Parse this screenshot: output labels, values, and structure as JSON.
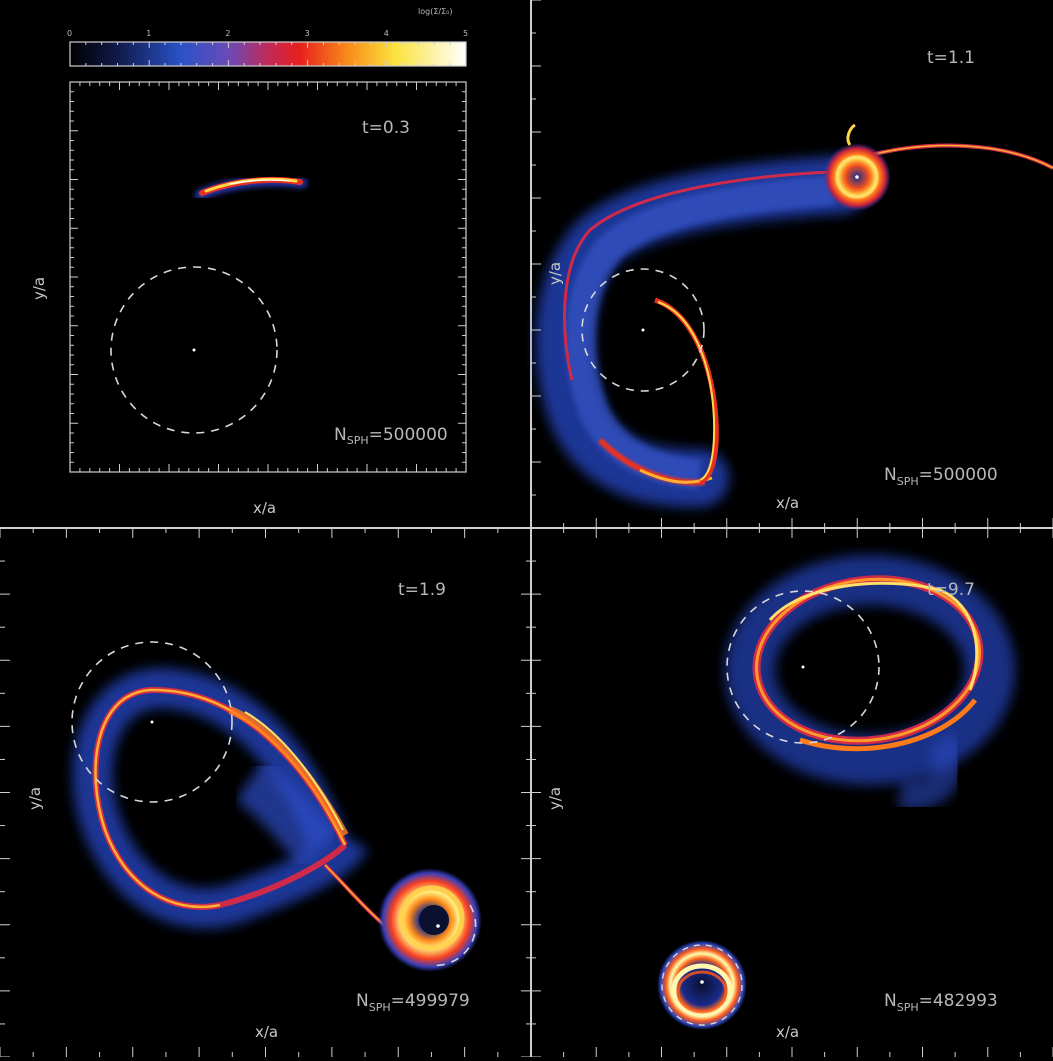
{
  "colorbar": {
    "title": "log(Σ/Σ₀)",
    "ticks": [
      "0",
      "1",
      "2",
      "3",
      "4",
      "5"
    ]
  },
  "panels": [
    {
      "id": "p1",
      "time": "t=0.3",
      "n_label": "N",
      "n_sub": "SPH",
      "n_value": "=500000",
      "xlabel": "x/a",
      "ylabel": "y/a"
    },
    {
      "id": "p2",
      "time": "t=1.1",
      "n_label": "N",
      "n_sub": "SPH",
      "n_value": "=500000",
      "xlabel": "x/a",
      "ylabel": "y/a"
    },
    {
      "id": "p3",
      "time": "t=1.9",
      "n_label": "N",
      "n_sub": "SPH",
      "n_value": "=499979",
      "xlabel": "x/a",
      "ylabel": "y/a"
    },
    {
      "id": "p4",
      "time": "t=9.7",
      "n_label": "N",
      "n_sub": "SPH",
      "n_value": "=482993",
      "xlabel": "x/a",
      "ylabel": "y/a"
    }
  ],
  "colors": {
    "background": "#000000",
    "frame": "#cfcfcf",
    "gas_low": "#1a2fa8",
    "gas_mid": "#8a2a8a",
    "gas_high": "#e0242a",
    "gas_peak": "#ffd23a",
    "gas_max": "#ffffff"
  }
}
